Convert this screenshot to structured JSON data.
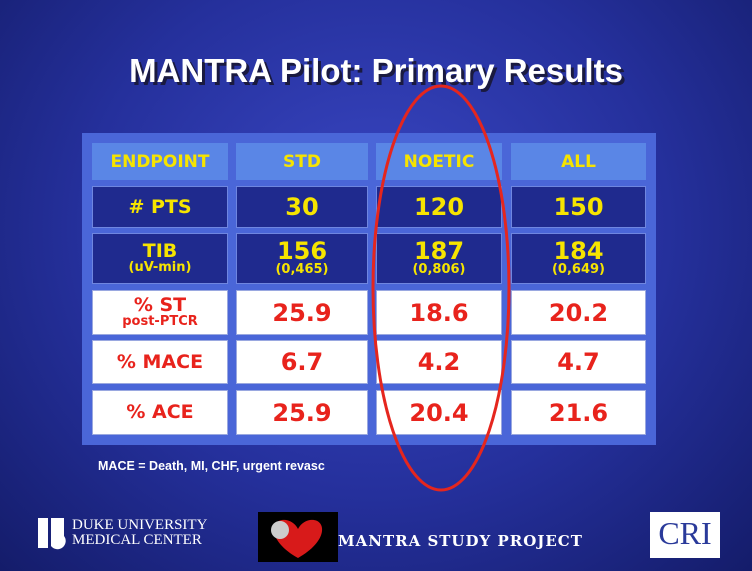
{
  "title": "MANTRA Pilot:  Primary Results",
  "table": {
    "header": [
      "ENDPOINT",
      "STD",
      "NOETIC",
      "ALL"
    ],
    "rows": [
      [
        {
          "main": "# PTS"
        },
        {
          "main": "30"
        },
        {
          "main": "120"
        },
        {
          "main": "150"
        }
      ],
      [
        {
          "main": "TIB",
          "sub": "(uV-min)"
        },
        {
          "main": "156",
          "sub": "(0,465)"
        },
        {
          "main": "187",
          "sub": "(0,806)"
        },
        {
          "main": "184",
          "sub": "(0,649)"
        }
      ],
      [
        {
          "main": "% ST",
          "sub": "post-PTCR"
        },
        {
          "main": "25.9"
        },
        {
          "main": "18.6"
        },
        {
          "main": "20.2"
        }
      ],
      [
        {
          "main": "% MACE"
        },
        {
          "main": "6.7"
        },
        {
          "main": "4.2"
        },
        {
          "main": "4.7"
        }
      ],
      [
        {
          "main": "% ACE"
        },
        {
          "main": "25.9"
        },
        {
          "main": "20.4"
        },
        {
          "main": "21.6"
        }
      ]
    ]
  },
  "footnote": "MACE = Death, MI, CHF, urgent revasc",
  "footer": {
    "left": "DUKE UNIVERSITY MEDICAL CENTER",
    "center": "MANTRA STUDY PROJECT",
    "right": "CRI"
  }
}
